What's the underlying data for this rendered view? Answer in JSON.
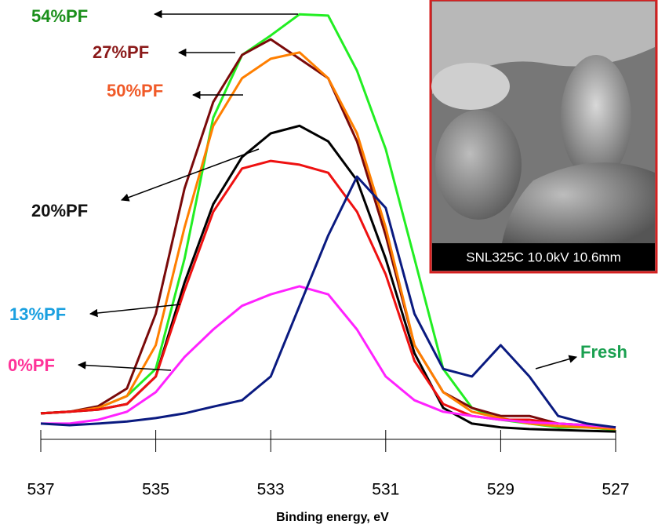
{
  "chart_data": {
    "type": "line",
    "x_label": "Binding energy, eV",
    "x": [
      537,
      536.5,
      536,
      535.5,
      535,
      534.5,
      534,
      533.5,
      533,
      532.5,
      532,
      531.5,
      531,
      530.5,
      530,
      529.5,
      529,
      528.5,
      528,
      527.5,
      527
    ],
    "xlim": [
      537,
      527
    ],
    "xticks": [
      537,
      535,
      533,
      531,
      529,
      527
    ],
    "ylim": [
      0,
      100
    ],
    "series": [
      {
        "name": "54%PF",
        "color": "#22ee22",
        "label_color": "#1a8f1a",
        "values": [
          5.2,
          5.6,
          6.5,
          9.3,
          15.7,
          41.7,
          75,
          89.8,
          94.4,
          99.4,
          99.1,
          86.1,
          67.6,
          41.7,
          15.7,
          6.5,
          3.7,
          2.8,
          1.9,
          1.9,
          1.3
        ]
      },
      {
        "name": "27%PF",
        "color": "#7a0a0a",
        "label_color": "#8b1a1a",
        "values": [
          5.2,
          5.6,
          6.9,
          11.1,
          28.7,
          58.3,
          78.7,
          89.8,
          93.5,
          88.9,
          84.3,
          69.4,
          47.2,
          21.3,
          10.2,
          6.5,
          4.6,
          4.6,
          2.8,
          2.4,
          1.9
        ]
      },
      {
        "name": "50%PF",
        "color": "#ff7f00",
        "label_color": "#f05a28",
        "values": [
          5.2,
          5.6,
          6.5,
          9.3,
          21.3,
          49.1,
          73.1,
          84.3,
          88.9,
          90.4,
          84.3,
          71.3,
          49.1,
          21.3,
          10.2,
          5.6,
          4.1,
          2.8,
          2.2,
          1.9,
          1.5
        ]
      },
      {
        "name": "20%PF",
        "color": "#000000",
        "label_color": "#111111",
        "values": [
          5.2,
          5.6,
          6.1,
          7.4,
          13.9,
          36.1,
          54.6,
          65.7,
          71.3,
          73.1,
          69.4,
          60.2,
          41.7,
          19.4,
          6.5,
          2.8,
          1.9,
          1.5,
          1.3,
          1.1,
          0.9
        ]
      },
      {
        "name": "13%PF",
        "color": "#ee1111",
        "label_color": "#1aa0e0",
        "values": [
          5.2,
          5.6,
          6.1,
          7.4,
          13.9,
          34.3,
          52.8,
          63,
          64.8,
          63.9,
          62,
          52.8,
          38,
          17.6,
          7.4,
          4.6,
          3.7,
          3.7,
          2.8,
          2.4,
          1.9
        ]
      },
      {
        "name": "0%PF",
        "color": "#ff22ff",
        "label_color": "#ff3399",
        "values": [
          2.8,
          2.8,
          3.7,
          5.6,
          10.2,
          18.5,
          25,
          30.6,
          33.3,
          35.2,
          33.3,
          25,
          13.9,
          8.3,
          5.6,
          4.6,
          3.7,
          3.1,
          2.8,
          2.4,
          1.9
        ]
      },
      {
        "name": "Fresh",
        "color": "#0a1a80",
        "label_color": "#1aa050",
        "values": [
          2.8,
          2.4,
          2.8,
          3.3,
          4.1,
          5.2,
          6.8,
          8.3,
          13.9,
          30.6,
          47.2,
          61.1,
          53.7,
          28.7,
          15.7,
          13.9,
          21.3,
          13.9,
          4.6,
          2.8,
          1.9
        ]
      }
    ],
    "inset_caption": "SNL325C 10.0kV 10.6mm"
  }
}
